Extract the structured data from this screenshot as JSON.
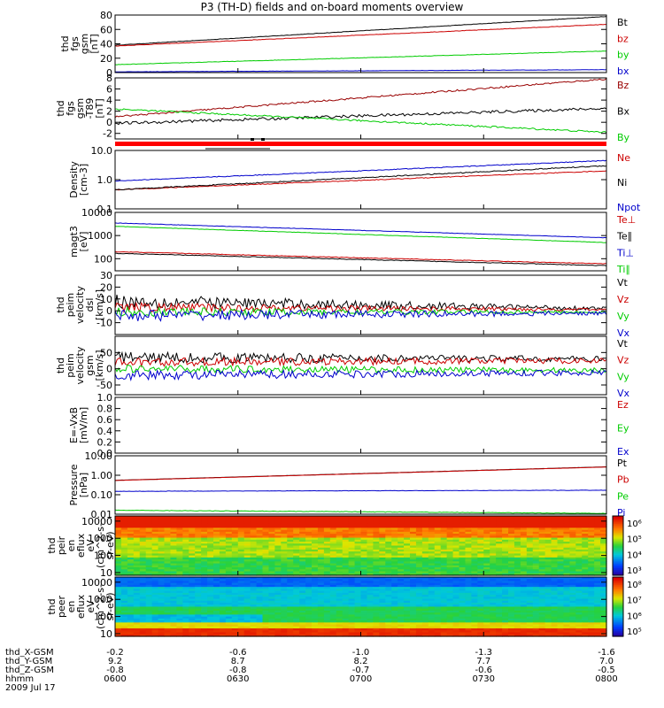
{
  "title": "P3 (TH-D) fields and on-board moments overview",
  "chart_data": [
    {
      "type": "line",
      "ylabel": [
        "thd",
        "fgs",
        "gsm",
        "[nT]"
      ],
      "ylim": [
        0,
        80
      ],
      "log": false,
      "yticks": [
        0,
        20,
        40,
        60,
        80
      ],
      "series": [
        {
          "name": "Bt",
          "color": "#000000",
          "from": 38,
          "to": 78,
          "noise": 0.3
        },
        {
          "name": "bz",
          "color": "#cc0000",
          "from": 37,
          "to": 67,
          "noise": 0.3
        },
        {
          "name": "by",
          "color": "#00cc00",
          "from": 11,
          "to": 30,
          "noise": 0.3
        },
        {
          "name": "bx",
          "color": "#0000cc",
          "from": 1,
          "to": 4,
          "noise": 0.2
        }
      ]
    },
    {
      "type": "line",
      "ylabel": [
        "thd",
        "fgs",
        "gsm",
        "-T89",
        "[nT]"
      ],
      "ylim": [
        -3,
        8
      ],
      "log": false,
      "yticks": [
        -2,
        0,
        2,
        4,
        6,
        8
      ],
      "series": [
        {
          "name": "Bz",
          "color": "#990000",
          "from": 1.0,
          "to": 7.8,
          "noise": 0.15
        },
        {
          "name": "Bx",
          "color": "#000000",
          "from": -0.2,
          "to": 2.5,
          "noise": 0.25
        },
        {
          "name": "By",
          "color": "#00cc00",
          "from": 2.4,
          "to": -1.8,
          "noise": 0.15
        }
      ]
    },
    {
      "type": "line",
      "ylabel": [
        "Density",
        "[cm-3]"
      ],
      "ylim": [
        0.1,
        10
      ],
      "log": true,
      "ytick_labels": [
        "10.0",
        "1.0",
        "0.1"
      ],
      "yticks": [
        10,
        1,
        0.1
      ],
      "series": [
        {
          "name": "Ne",
          "color": "#cc0000",
          "from": 0.45,
          "to": 2.0,
          "noise": 0.03
        },
        {
          "name": "Ni",
          "color": "#000000",
          "from": 0.45,
          "to": 3.0,
          "noise": 0.04
        },
        {
          "name": "Npot",
          "color": "#0000cc",
          "from": 0.9,
          "to": 4.5,
          "noise": 0.03
        }
      ]
    },
    {
      "type": "line",
      "ylabel": [
        "magt3",
        "[eV]"
      ],
      "ylim": [
        30,
        10000
      ],
      "log": true,
      "yticks": [
        100,
        1000,
        10000
      ],
      "ytick_labels": [
        "100",
        "1000",
        "10000"
      ],
      "series": [
        {
          "name": "Te⊥",
          "color": "#cc0000",
          "from": 200,
          "to": 60,
          "noise": 0.03
        },
        {
          "name": "Te∥",
          "color": "#000000",
          "from": 170,
          "to": 50,
          "noise": 0.03
        },
        {
          "name": "Ti⊥",
          "color": "#0000cc",
          "from": 3500,
          "to": 800,
          "noise": 0.02
        },
        {
          "name": "Ti∥",
          "color": "#00cc00",
          "from": 2500,
          "to": 500,
          "noise": 0.02
        }
      ]
    },
    {
      "type": "line",
      "ylabel": [
        "thd",
        "peim",
        "velocity",
        "dsl",
        "[km/s]"
      ],
      "ylim": [
        -20,
        30
      ],
      "log": false,
      "yticks": [
        -10,
        0,
        10,
        20,
        30
      ],
      "series": [
        {
          "name": "Vt",
          "color": "#000000",
          "from": 8,
          "to": 2,
          "noise": 6,
          "noiseTo": 1.5
        },
        {
          "name": "Vz",
          "color": "#cc0000",
          "from": 3,
          "to": 1,
          "noise": 4,
          "noiseTo": 1
        },
        {
          "name": "Vy",
          "color": "#00cc00",
          "from": -1,
          "to": -1,
          "noise": 4,
          "noiseTo": 1
        },
        {
          "name": "Vx",
          "color": "#0000cc",
          "from": -4,
          "to": -2,
          "noise": 5,
          "noiseTo": 1.5
        }
      ]
    },
    {
      "type": "line",
      "ylabel": [
        "thd",
        "peim",
        "velocity",
        "gsm",
        "[km/s]"
      ],
      "ylim": [
        -80,
        100
      ],
      "log": false,
      "yticks": [
        -50,
        0,
        50
      ],
      "series": [
        {
          "name": "Vt",
          "color": "#000000",
          "from": 35,
          "to": 30,
          "noise": 18,
          "noiseTo": 8
        },
        {
          "name": "Vz",
          "color": "#cc0000",
          "from": 20,
          "to": 25,
          "noise": 14,
          "noiseTo": 8
        },
        {
          "name": "Vy",
          "color": "#00cc00",
          "from": 0,
          "to": -5,
          "noise": 12,
          "noiseTo": 8
        },
        {
          "name": "Vx",
          "color": "#0000cc",
          "from": -20,
          "to": -12,
          "noise": 15,
          "noiseTo": 8
        }
      ]
    },
    {
      "type": "line",
      "ylabel": [
        "E=-VxB",
        "[mV/m]"
      ],
      "ylim": [
        0,
        1
      ],
      "log": false,
      "yticks": [
        0,
        0.2,
        0.4,
        0.6,
        0.8,
        1.0
      ],
      "ytick_labels": [
        "0.0",
        "0.2",
        "0.4",
        "0.6",
        "0.8",
        "1.0"
      ],
      "series": [
        {
          "name": "Ez",
          "color": "#cc0000",
          "empty": true
        },
        {
          "name": "Ey",
          "color": "#00cc00",
          "empty": true
        },
        {
          "name": "Ex",
          "color": "#0000cc",
          "empty": true
        }
      ]
    },
    {
      "type": "line",
      "ylabel": [
        "Pressure",
        "[nPa]"
      ],
      "ylim": [
        0.01,
        10
      ],
      "log": true,
      "yticks": [
        10,
        1,
        0.1,
        0.01
      ],
      "ytick_labels": [
        "10.00",
        "1.00",
        "0.10",
        "0.01"
      ],
      "series": [
        {
          "name": "Pt",
          "color": "#000000",
          "from": 0.55,
          "to": 2.7,
          "noise": 0.01
        },
        {
          "name": "Pb",
          "color": "#cc0000",
          "from": 0.54,
          "to": 2.65,
          "noise": 0.01
        },
        {
          "name": "Pe",
          "color": "#00cc00",
          "from": 0.016,
          "to": 0.011,
          "noise": 0.03
        },
        {
          "name": "Pi",
          "color": "#0000cc",
          "from": 0.15,
          "to": 0.17,
          "noise": 0.02
        }
      ]
    },
    {
      "type": "heatmap",
      "ylabel": [
        "thd",
        "peir",
        "en",
        "eflux",
        "eV",
        "(cm^2-s-",
        "sr-eV)"
      ],
      "ylim": [
        7,
        20000
      ],
      "log": true,
      "yticks": [
        10,
        100,
        1000,
        10000
      ],
      "ytick_labels": [
        "10",
        "100",
        "1000",
        "10000"
      ],
      "colorbar": {
        "min_exp": 3,
        "max_exp": 6,
        "labels": [
          "10³",
          "10⁴",
          "10⁵",
          "10⁶"
        ]
      },
      "description": "ion energy flux: high (red) above ~3000 eV, yellow-green mid energies, green at low energies"
    },
    {
      "type": "heatmap",
      "ylabel": [
        "thd",
        "peer",
        "en",
        "eflux",
        "eV",
        "(cm^2-s-",
        "sr-eV)"
      ],
      "ylim": [
        7,
        20000
      ],
      "log": true,
      "yticks": [
        10,
        100,
        1000,
        10000
      ],
      "ytick_labels": [
        "10",
        "100",
        "1000",
        "10000"
      ],
      "colorbar": {
        "min_exp": 5,
        "max_exp": 8,
        "labels": [
          "10⁵",
          "10⁶",
          "10⁷",
          "10⁸"
        ]
      },
      "description": "electron energy flux: blue at high energies, green mid, yellow-red band below ~30 eV"
    }
  ],
  "xaxis": {
    "ticks": [
      "0600",
      "0630",
      "0700",
      "0730",
      "0800"
    ],
    "rows": [
      {
        "label": "thd_X-GSM",
        "values": [
          "-0.2",
          "-0.6",
          "-1.0",
          "-1.3",
          "-1.6"
        ]
      },
      {
        "label": "thd_Y-GSM",
        "values": [
          "9.2",
          "8.7",
          "8.2",
          "7.7",
          "7.0"
        ]
      },
      {
        "label": "thd_Z-GSM",
        "values": [
          "-0.8",
          "-0.8",
          "-0.7",
          "-0.6",
          "-0.5"
        ]
      },
      {
        "label": "hhmm",
        "values": [
          "0600",
          "0630",
          "0700",
          "0730",
          "0800"
        ]
      }
    ],
    "date": "2009 Jul 17"
  }
}
